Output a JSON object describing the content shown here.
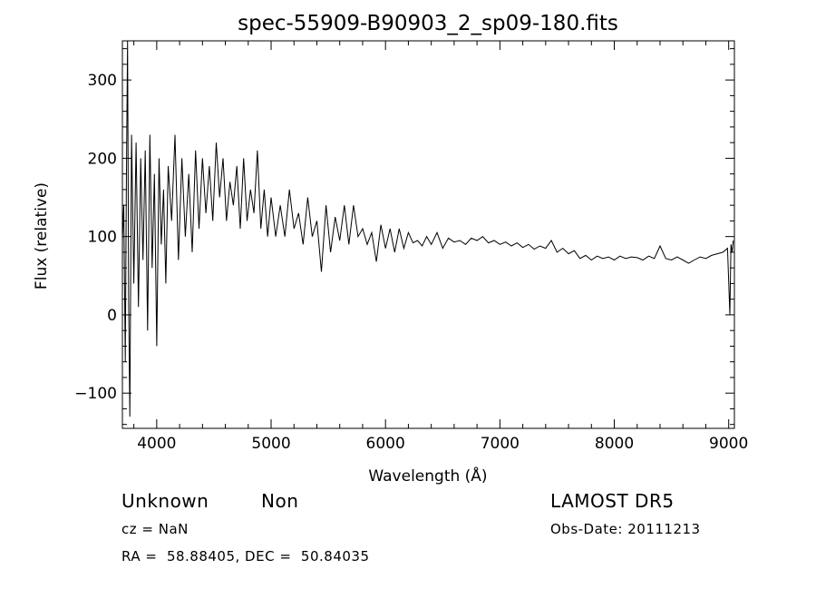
{
  "chart_data": {
    "type": "line",
    "title": "spec-55909-B90903_2_sp09-180.fits",
    "xlabel": "Wavelength (Å)",
    "ylabel": "Flux (relative)",
    "xlim": [
      3700,
      9050
    ],
    "ylim": [
      -145,
      350
    ],
    "xticks": [
      4000,
      5000,
      6000,
      7000,
      8000,
      9000
    ],
    "yticks": [
      -100,
      0,
      100,
      200,
      300
    ],
    "grid": false,
    "line_color": "#000000",
    "x": [
      3700,
      3712,
      3725,
      3735,
      3745,
      3755,
      3765,
      3780,
      3800,
      3820,
      3840,
      3860,
      3880,
      3900,
      3920,
      3940,
      3960,
      3980,
      4000,
      4020,
      4040,
      4060,
      4080,
      4100,
      4130,
      4160,
      4190,
      4220,
      4250,
      4280,
      4310,
      4340,
      4370,
      4400,
      4430,
      4460,
      4490,
      4520,
      4550,
      4580,
      4610,
      4640,
      4670,
      4700,
      4730,
      4760,
      4790,
      4820,
      4850,
      4880,
      4910,
      4940,
      4970,
      5000,
      5040,
      5080,
      5120,
      5160,
      5200,
      5240,
      5280,
      5320,
      5360,
      5400,
      5440,
      5480,
      5520,
      5560,
      5600,
      5640,
      5680,
      5720,
      5760,
      5800,
      5840,
      5880,
      5920,
      5960,
      6000,
      6040,
      6080,
      6120,
      6160,
      6200,
      6240,
      6280,
      6320,
      6360,
      6400,
      6450,
      6500,
      6550,
      6600,
      6650,
      6700,
      6750,
      6800,
      6850,
      6900,
      6950,
      7000,
      7050,
      7100,
      7150,
      7200,
      7250,
      7300,
      7350,
      7400,
      7450,
      7500,
      7550,
      7600,
      7650,
      7700,
      7750,
      7800,
      7850,
      7900,
      7950,
      8000,
      8050,
      8100,
      8150,
      8200,
      8250,
      8300,
      8350,
      8400,
      8450,
      8500,
      8550,
      8600,
      8650,
      8700,
      8750,
      8800,
      8850,
      8900,
      8950,
      8990,
      9010,
      9020,
      9030,
      9040
    ],
    "y": [
      95,
      140,
      -60,
      170,
      350,
      20,
      -130,
      230,
      40,
      220,
      10,
      200,
      70,
      210,
      -20,
      230,
      60,
      180,
      -40,
      200,
      90,
      160,
      40,
      190,
      120,
      230,
      70,
      200,
      100,
      180,
      80,
      210,
      110,
      200,
      130,
      190,
      120,
      220,
      150,
      200,
      120,
      170,
      140,
      190,
      110,
      200,
      120,
      160,
      130,
      210,
      110,
      160,
      100,
      150,
      100,
      140,
      100,
      160,
      110,
      130,
      90,
      150,
      100,
      120,
      55,
      140,
      80,
      125,
      95,
      140,
      90,
      140,
      100,
      110,
      90,
      105,
      68,
      115,
      85,
      110,
      80,
      110,
      85,
      105,
      92,
      95,
      88,
      100,
      90,
      105,
      85,
      98,
      93,
      95,
      90,
      98,
      95,
      100,
      92,
      95,
      90,
      93,
      88,
      92,
      86,
      90,
      84,
      88,
      85,
      95,
      80,
      85,
      78,
      82,
      72,
      76,
      70,
      75,
      72,
      74,
      70,
      75,
      72,
      74,
      73,
      70,
      75,
      72,
      88,
      72,
      70,
      74,
      70,
      66,
      70,
      74,
      72,
      76,
      78,
      80,
      85,
      0,
      90,
      80,
      95
    ]
  },
  "footer": {
    "object_class": "Unknown",
    "object_subclass": "Non",
    "cz": "cz = NaN",
    "coords": "RA =  58.88405, DEC =  50.84035",
    "survey": "LAMOST DR5",
    "obs_date": "Obs-Date: 20111213"
  }
}
